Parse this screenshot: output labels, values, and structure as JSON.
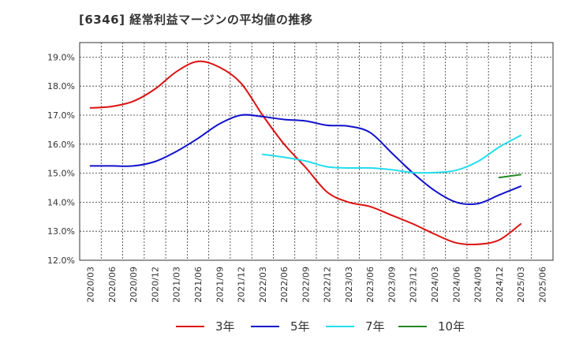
{
  "chart_data": {
    "type": "line",
    "title": "[6346]  経常利益マージンの平均値の推移",
    "xlabel": "",
    "ylabel": "",
    "ylim": [
      12.0,
      19.5
    ],
    "grid": true,
    "legend_position": "bottom",
    "y_ticks": [
      "12.0%",
      "13.0%",
      "14.0%",
      "15.0%",
      "16.0%",
      "17.0%",
      "18.0%",
      "19.0%"
    ],
    "x_ticks": [
      "2020/03",
      "2020/06",
      "2020/09",
      "2020/12",
      "2021/03",
      "2021/06",
      "2021/09",
      "2021/12",
      "2022/03",
      "2022/06",
      "2022/09",
      "2022/12",
      "2023/03",
      "2023/06",
      "2023/09",
      "2023/12",
      "2024/03",
      "2024/06",
      "2024/09",
      "2024/12",
      "2025/03",
      "2025/06"
    ],
    "series": [
      {
        "name": "3年",
        "color": "#dd1111",
        "points": [
          [
            "2020/03",
            17.25
          ],
          [
            "2020/06",
            17.3
          ],
          [
            "2020/09",
            17.48
          ],
          [
            "2020/12",
            17.9
          ],
          [
            "2021/03",
            18.5
          ],
          [
            "2021/06",
            18.85
          ],
          [
            "2021/09",
            18.65
          ],
          [
            "2021/12",
            18.1
          ],
          [
            "2022/03",
            17.0
          ],
          [
            "2022/06",
            16.0
          ],
          [
            "2022/09",
            15.2
          ],
          [
            "2022/12",
            14.35
          ],
          [
            "2023/03",
            14.0
          ],
          [
            "2023/06",
            13.85
          ],
          [
            "2023/09",
            13.55
          ],
          [
            "2023/12",
            13.25
          ],
          [
            "2024/03",
            12.9
          ],
          [
            "2024/06",
            12.6
          ],
          [
            "2024/09",
            12.55
          ],
          [
            "2024/12",
            12.7
          ],
          [
            "2025/03",
            13.25
          ]
        ]
      },
      {
        "name": "5年",
        "color": "#1111cc",
        "points": [
          [
            "2020/03",
            15.25
          ],
          [
            "2020/06",
            15.25
          ],
          [
            "2020/09",
            15.25
          ],
          [
            "2020/12",
            15.4
          ],
          [
            "2021/03",
            15.75
          ],
          [
            "2021/06",
            16.2
          ],
          [
            "2021/09",
            16.7
          ],
          [
            "2021/12",
            17.0
          ],
          [
            "2022/03",
            16.95
          ],
          [
            "2022/06",
            16.85
          ],
          [
            "2022/09",
            16.8
          ],
          [
            "2022/12",
            16.65
          ],
          [
            "2023/03",
            16.62
          ],
          [
            "2023/06",
            16.4
          ],
          [
            "2023/09",
            15.7
          ],
          [
            "2023/12",
            15.0
          ],
          [
            "2024/03",
            14.4
          ],
          [
            "2024/06",
            14.0
          ],
          [
            "2024/09",
            13.95
          ],
          [
            "2024/12",
            14.25
          ],
          [
            "2025/03",
            14.55
          ]
        ]
      },
      {
        "name": "7年",
        "color": "#22ddee",
        "points": [
          [
            "2022/03",
            15.65
          ],
          [
            "2022/06",
            15.55
          ],
          [
            "2022/09",
            15.42
          ],
          [
            "2022/12",
            15.22
          ],
          [
            "2023/03",
            15.18
          ],
          [
            "2023/06",
            15.18
          ],
          [
            "2023/09",
            15.12
          ],
          [
            "2023/12",
            15.02
          ],
          [
            "2024/03",
            15.02
          ],
          [
            "2024/06",
            15.1
          ],
          [
            "2024/09",
            15.4
          ],
          [
            "2024/12",
            15.9
          ],
          [
            "2025/03",
            16.3
          ]
        ]
      },
      {
        "name": "10年",
        "color": "#228822",
        "points": [
          [
            "2024/12",
            14.85
          ],
          [
            "2025/03",
            14.95
          ]
        ]
      }
    ]
  }
}
